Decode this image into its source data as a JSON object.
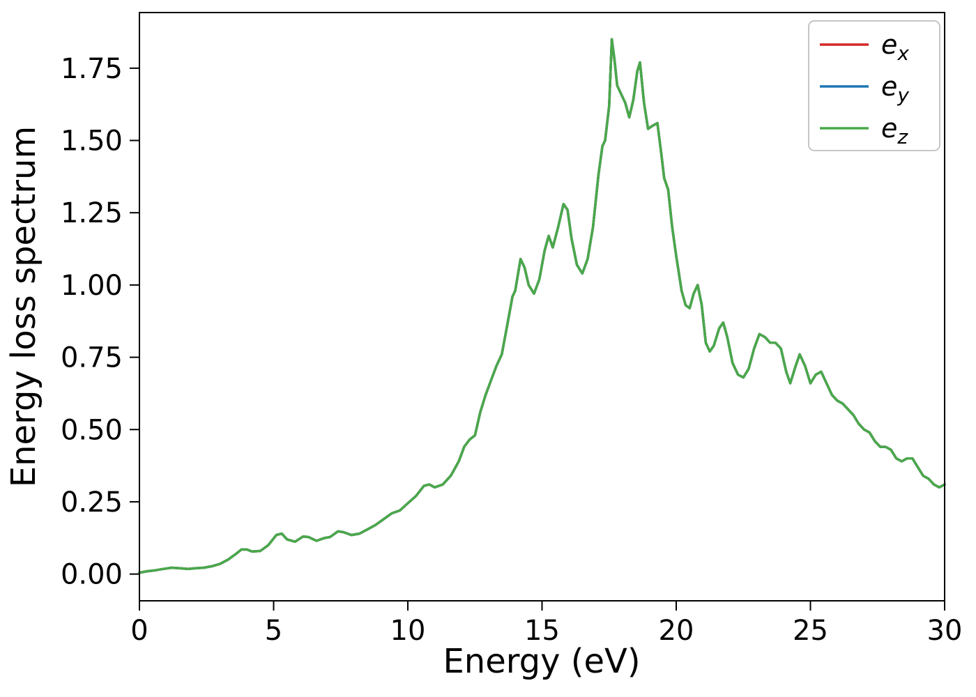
{
  "figure": {
    "background": "#ffffff",
    "frame_color": "#000000"
  },
  "chart_data": {
    "type": "line",
    "title": "",
    "xlabel": "Energy (eV)",
    "ylabel": "Energy loss spectrum",
    "xlim": [
      0,
      30
    ],
    "ylim": [
      -0.0925,
      1.9425
    ],
    "grid": false,
    "xticks": [
      {
        "v": 0,
        "label": "0"
      },
      {
        "v": 5,
        "label": "5"
      },
      {
        "v": 10,
        "label": "10"
      },
      {
        "v": 15,
        "label": "15"
      },
      {
        "v": 20,
        "label": "20"
      },
      {
        "v": 25,
        "label": "25"
      },
      {
        "v": 30,
        "label": "30"
      }
    ],
    "yticks": [
      {
        "v": 0.0,
        "label": "0.00"
      },
      {
        "v": 0.25,
        "label": "0.25"
      },
      {
        "v": 0.5,
        "label": "0.50"
      },
      {
        "v": 0.75,
        "label": "0.75"
      },
      {
        "v": 1.0,
        "label": "1.00"
      },
      {
        "v": 1.25,
        "label": "1.25"
      },
      {
        "v": 1.5,
        "label": "1.50"
      },
      {
        "v": 1.75,
        "label": "1.75"
      }
    ],
    "legend": {
      "position": "upper right",
      "entries": [
        {
          "label": "e_x",
          "color": "#d62728"
        },
        {
          "label": "e_y",
          "color": "#1f77b4"
        },
        {
          "label": "e_z",
          "color": "#4aa84a"
        }
      ]
    },
    "note": "The three series e_x, e_y, e_z are identical and overlap exactly; only the last-drawn (e_z, green) curve is visible.",
    "x": [
      0,
      0.3,
      0.6,
      0.9,
      1.2,
      1.5,
      1.8,
      2.1,
      2.4,
      2.7,
      3.0,
      3.3,
      3.6,
      3.8,
      4.0,
      4.2,
      4.5,
      4.8,
      5.1,
      5.3,
      5.5,
      5.8,
      6.1,
      6.3,
      6.6,
      6.9,
      7.1,
      7.4,
      7.6,
      7.9,
      8.2,
      8.5,
      8.8,
      9.1,
      9.4,
      9.7,
      10.0,
      10.3,
      10.6,
      10.8,
      11.0,
      11.3,
      11.6,
      11.9,
      12.1,
      12.3,
      12.5,
      12.7,
      12.9,
      13.1,
      13.3,
      13.5,
      13.7,
      13.9,
      14.0,
      14.2,
      14.35,
      14.5,
      14.7,
      14.9,
      15.1,
      15.25,
      15.4,
      15.6,
      15.8,
      15.95,
      16.1,
      16.3,
      16.5,
      16.7,
      16.9,
      17.1,
      17.25,
      17.35,
      17.5,
      17.6,
      17.7,
      17.8,
      17.95,
      18.1,
      18.25,
      18.4,
      18.55,
      18.65,
      18.8,
      18.95,
      19.1,
      19.3,
      19.45,
      19.55,
      19.7,
      19.85,
      20.0,
      20.2,
      20.35,
      20.5,
      20.65,
      20.8,
      20.95,
      21.1,
      21.25,
      21.4,
      21.6,
      21.75,
      21.9,
      22.1,
      22.3,
      22.5,
      22.7,
      22.9,
      23.1,
      23.3,
      23.5,
      23.7,
      23.9,
      24.1,
      24.25,
      24.45,
      24.6,
      24.8,
      25.0,
      25.2,
      25.4,
      25.6,
      25.8,
      26.0,
      26.2,
      26.4,
      26.6,
      26.8,
      27.0,
      27.2,
      27.4,
      27.6,
      27.8,
      28.0,
      28.2,
      28.4,
      28.6,
      28.8,
      29.0,
      29.2,
      29.4,
      29.6,
      29.8,
      30.0
    ],
    "y": [
      0.005,
      0.01,
      0.013,
      0.018,
      0.022,
      0.02,
      0.018,
      0.02,
      0.022,
      0.027,
      0.035,
      0.05,
      0.07,
      0.085,
      0.085,
      0.078,
      0.08,
      0.1,
      0.135,
      0.14,
      0.12,
      0.112,
      0.13,
      0.128,
      0.115,
      0.125,
      0.128,
      0.148,
      0.145,
      0.135,
      0.14,
      0.155,
      0.17,
      0.19,
      0.21,
      0.22,
      0.245,
      0.27,
      0.305,
      0.31,
      0.3,
      0.31,
      0.34,
      0.39,
      0.44,
      0.465,
      0.48,
      0.56,
      0.62,
      0.67,
      0.72,
      0.76,
      0.86,
      0.96,
      0.98,
      1.09,
      1.06,
      1.0,
      0.97,
      1.02,
      1.12,
      1.17,
      1.13,
      1.2,
      1.28,
      1.26,
      1.16,
      1.07,
      1.04,
      1.09,
      1.2,
      1.38,
      1.48,
      1.5,
      1.62,
      1.85,
      1.78,
      1.69,
      1.66,
      1.63,
      1.58,
      1.64,
      1.74,
      1.77,
      1.63,
      1.54,
      1.55,
      1.56,
      1.45,
      1.37,
      1.33,
      1.2,
      1.1,
      0.98,
      0.93,
      0.92,
      0.97,
      1.0,
      0.93,
      0.8,
      0.77,
      0.79,
      0.85,
      0.87,
      0.82,
      0.73,
      0.69,
      0.68,
      0.71,
      0.78,
      0.83,
      0.82,
      0.8,
      0.8,
      0.78,
      0.7,
      0.66,
      0.72,
      0.76,
      0.72,
      0.66,
      0.69,
      0.7,
      0.66,
      0.62,
      0.6,
      0.59,
      0.57,
      0.55,
      0.52,
      0.5,
      0.49,
      0.46,
      0.44,
      0.44,
      0.43,
      0.4,
      0.39,
      0.4,
      0.4,
      0.37,
      0.34,
      0.33,
      0.31,
      0.3,
      0.31
    ],
    "series": [
      {
        "name": "e_x",
        "color": "#d62728",
        "y_ref": "y"
      },
      {
        "name": "e_y",
        "color": "#1f77b4",
        "y_ref": "y"
      },
      {
        "name": "e_z",
        "color": "#4aa84a",
        "y_ref": "y"
      }
    ]
  }
}
